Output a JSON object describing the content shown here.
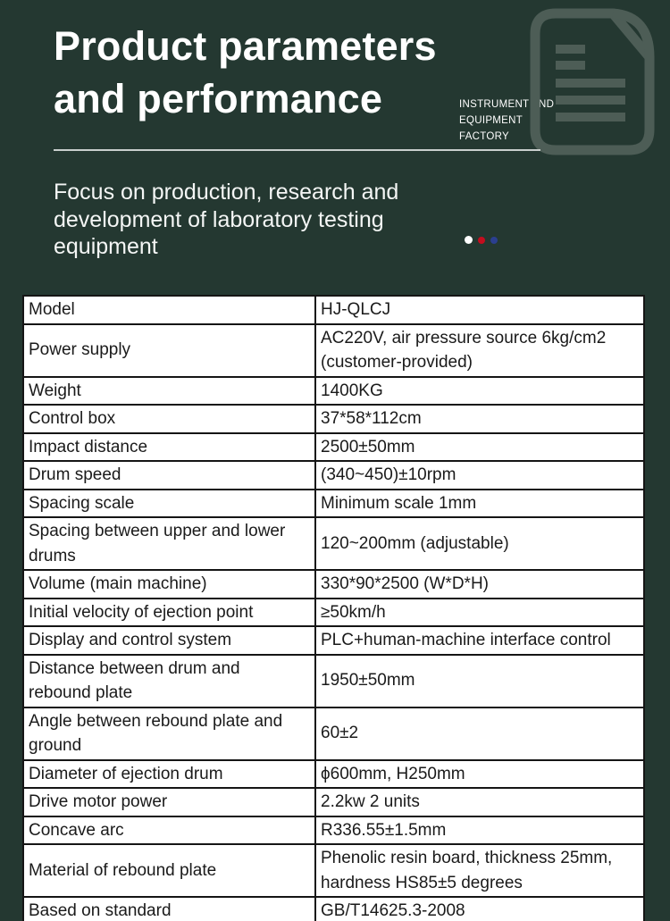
{
  "header": {
    "title": "Product parameters\nand performance",
    "factory_label": "INSTRUMENT AND\nEQUIPMENT\nFACTORY",
    "subtitle": "Focus on production, research and\ndevelopment of laboratory testing\nequipment",
    "icon_name": "document-icon",
    "colors": {
      "background": "#243831",
      "icon": "#4d5d56",
      "divider": "#c9cfcd",
      "title_text": "#ffffff"
    },
    "dots": [
      {
        "name": "dot-white",
        "color": "#ffffff"
      },
      {
        "name": "dot-red",
        "color": "#c40d1e"
      },
      {
        "name": "dot-blue",
        "color": "#2b3f8f"
      }
    ]
  },
  "table": {
    "rows": [
      {
        "label": "Model",
        "value": "HJ-QLCJ"
      },
      {
        "label": "Power supply",
        "value": "AC220V, air pressure source 6kg/cm2\n(customer-provided)"
      },
      {
        "label": "Weight",
        "value": "1400KG"
      },
      {
        "label": "Control box",
        "value": "37*58*112cm"
      },
      {
        "label": "Impact distance",
        "value": "2500±50mm"
      },
      {
        "label": "Drum speed",
        "value": "(340~450)±10rpm"
      },
      {
        "label": "Spacing scale",
        "value": "Minimum scale 1mm"
      },
      {
        "label": "Spacing between upper and lower\ndrums",
        "value": "120~200mm (adjustable)"
      },
      {
        "label": "Volume (main machine)",
        "value": "330*90*2500 (W*D*H)"
      },
      {
        "label": "Initial velocity of ejection point",
        "value": "≥50km/h"
      },
      {
        "label": "Display and control system",
        "value": "PLC+human-machine interface control"
      },
      {
        "label": "Distance between drum and\nrebound plate",
        "value": "1950±50mm"
      },
      {
        "label": "Angle between rebound plate and\nground",
        "value": "60±2"
      },
      {
        "label": "Diameter of ejection drum",
        "value": "ϕ600mm, H250mm"
      },
      {
        "label": "Drive motor power",
        "value": "2.2kw 2 units"
      },
      {
        "label": "Concave arc",
        "value": "R336.55±1.5mm"
      },
      {
        "label": "Material of rebound plate",
        "value": "Phenolic resin board, thickness 25mm,\nhardness HS85±5 degrees"
      },
      {
        "label": "Based on standard",
        "value": "GB/T14625.3-2008"
      }
    ]
  }
}
